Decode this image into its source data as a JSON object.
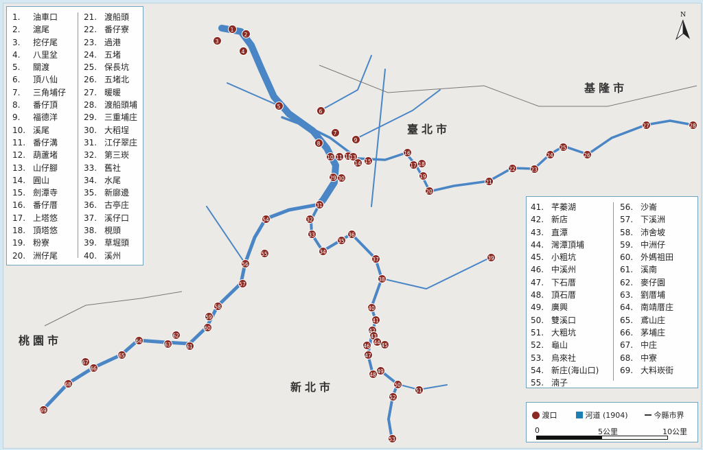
{
  "legend_left": {
    "col1": [
      [
        "1.",
        "油車口"
      ],
      [
        "2.",
        "滬尾"
      ],
      [
        "3.",
        "挖仔尾"
      ],
      [
        "4.",
        "八里坌"
      ],
      [
        "5.",
        "關渡"
      ],
      [
        "6.",
        "頂八仙"
      ],
      [
        "7.",
        "三角埔仔"
      ],
      [
        "8.",
        "番仔頂"
      ],
      [
        "9.",
        "福德洋"
      ],
      [
        "10.",
        "溪尾"
      ],
      [
        "11.",
        "番仔溝"
      ],
      [
        "12.",
        "葫蘆堵"
      ],
      [
        "13.",
        "山仔腳"
      ],
      [
        "14.",
        "圓山"
      ],
      [
        "15.",
        "劍潭寺"
      ],
      [
        "16.",
        "番仔厝"
      ],
      [
        "17.",
        "上塔悠"
      ],
      [
        "18.",
        "頂塔悠"
      ],
      [
        "19.",
        "粉寮"
      ],
      [
        "20.",
        "洲仔尾"
      ]
    ],
    "col2": [
      [
        "21.",
        "渡船頭"
      ],
      [
        "22.",
        "番仔寮"
      ],
      [
        "23.",
        "過港"
      ],
      [
        "24.",
        "五堵"
      ],
      [
        "25.",
        "保長坑"
      ],
      [
        "26.",
        "五堵北"
      ],
      [
        "27.",
        "暖暖"
      ],
      [
        "28.",
        "渡船頭埔"
      ],
      [
        "29.",
        "三重埔庄"
      ],
      [
        "30.",
        "大稻埕"
      ],
      [
        "31.",
        "江仔翠庄"
      ],
      [
        "32.",
        "第三崁"
      ],
      [
        "33.",
        "舊社"
      ],
      [
        "34.",
        "水尾"
      ],
      [
        "35.",
        "新廍邊"
      ],
      [
        "36.",
        "古亭庄"
      ],
      [
        "37.",
        "溪仔口"
      ],
      [
        "38.",
        "梘頭"
      ],
      [
        "39.",
        "草堀頭"
      ],
      [
        "40.",
        "溪州"
      ]
    ]
  },
  "legend_right": {
    "col1": [
      [
        "41.",
        "芊蓁湖"
      ],
      [
        "42.",
        "新店"
      ],
      [
        "43.",
        "直潭"
      ],
      [
        "44.",
        "灣潭頂埔"
      ],
      [
        "45.",
        "小粗坑"
      ],
      [
        "46.",
        "中溪州"
      ],
      [
        "47.",
        "下石厝"
      ],
      [
        "48.",
        "頂石厝"
      ],
      [
        "49.",
        "廣興"
      ],
      [
        "50.",
        "雙溪口"
      ],
      [
        "51.",
        "大粗坑"
      ],
      [
        "52.",
        "龜山"
      ],
      [
        "53.",
        "烏來社"
      ],
      [
        "54.",
        "新庄(海山口)"
      ],
      [
        "55.",
        "湳子"
      ]
    ],
    "col2": [
      [
        "56.",
        "沙崙"
      ],
      [
        "57.",
        "下溪洲"
      ],
      [
        "58.",
        "沛舍坡"
      ],
      [
        "59.",
        "中洲仔"
      ],
      [
        "60.",
        "外媽祖田"
      ],
      [
        "61.",
        "溪南"
      ],
      [
        "62.",
        "麥仔園"
      ],
      [
        "63.",
        "劉厝埔"
      ],
      [
        "64.",
        "南靖厝庄"
      ],
      [
        "65.",
        "鳶山庄"
      ],
      [
        "66.",
        "茅埔庄"
      ],
      [
        "67.",
        "中庄"
      ],
      [
        "68.",
        "中寮"
      ],
      [
        "69.",
        "大料崁街"
      ]
    ]
  },
  "key": {
    "ferry": "渡口",
    "river": "河道 (1904)",
    "boundary": "今縣市界",
    "scale": [
      "0",
      "5公里",
      "10公里"
    ]
  },
  "cities": {
    "taipei": "臺北市",
    "keelung": "基隆市",
    "newtaipei": "新北市",
    "taoyuan": "桃園市"
  },
  "compass": "N",
  "colors": {
    "river": "#4a86c5",
    "ferry": "#8a2a22",
    "river_key": "#1f7fb3"
  }
}
